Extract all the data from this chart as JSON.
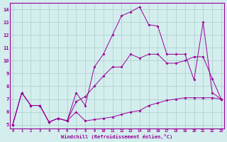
{
  "line1_x": [
    0,
    1,
    2,
    3,
    4,
    5,
    6,
    7,
    8,
    9,
    10,
    11,
    12,
    13,
    14,
    15,
    16,
    17,
    18,
    19,
    20,
    21,
    22,
    23
  ],
  "line1_y": [
    5.0,
    7.5,
    6.5,
    6.5,
    5.2,
    5.5,
    5.3,
    6.0,
    5.3,
    5.4,
    5.5,
    5.6,
    5.8,
    6.0,
    6.1,
    6.5,
    6.7,
    6.9,
    7.0,
    7.1,
    7.1,
    7.1,
    7.1,
    7.0
  ],
  "line2_x": [
    0,
    1,
    2,
    3,
    4,
    5,
    6,
    7,
    8,
    9,
    10,
    11,
    12,
    13,
    14,
    15,
    16,
    17,
    18,
    19,
    20,
    21,
    22,
    23
  ],
  "line2_y": [
    5.0,
    7.5,
    6.5,
    6.5,
    5.2,
    5.5,
    5.3,
    6.8,
    7.2,
    8.0,
    8.8,
    9.5,
    9.5,
    10.5,
    10.2,
    10.5,
    10.5,
    9.8,
    9.8,
    10.0,
    10.3,
    10.3,
    8.6,
    7.0
  ],
  "line3_x": [
    0,
    1,
    2,
    3,
    4,
    5,
    6,
    7,
    8,
    9,
    10,
    11,
    12,
    13,
    14,
    15,
    16,
    17,
    18,
    19,
    20,
    21,
    22,
    23
  ],
  "line3_y": [
    5.0,
    7.5,
    6.5,
    6.5,
    5.2,
    5.5,
    5.3,
    7.5,
    6.5,
    9.5,
    10.5,
    12.0,
    13.5,
    13.8,
    14.2,
    12.8,
    12.7,
    10.5,
    10.5,
    10.5,
    8.5,
    13.0,
    7.5,
    7.0
  ],
  "line_color": "#990099",
  "bg_color": "#d4eeee",
  "grid_color": "#aacccc",
  "xlim_min": -0.3,
  "xlim_max": 23.3,
  "ylim_min": 4.7,
  "ylim_max": 14.5,
  "yticks": [
    5,
    6,
    7,
    8,
    9,
    10,
    11,
    12,
    13,
    14
  ],
  "xticks": [
    0,
    1,
    2,
    3,
    4,
    5,
    6,
    7,
    8,
    9,
    10,
    11,
    12,
    13,
    14,
    15,
    16,
    17,
    18,
    19,
    20,
    21,
    22,
    23
  ],
  "xlabel": "Windchill (Refroidissement éolien,°C)",
  "marker": "D",
  "markersize": 2.0,
  "linewidth": 0.7
}
